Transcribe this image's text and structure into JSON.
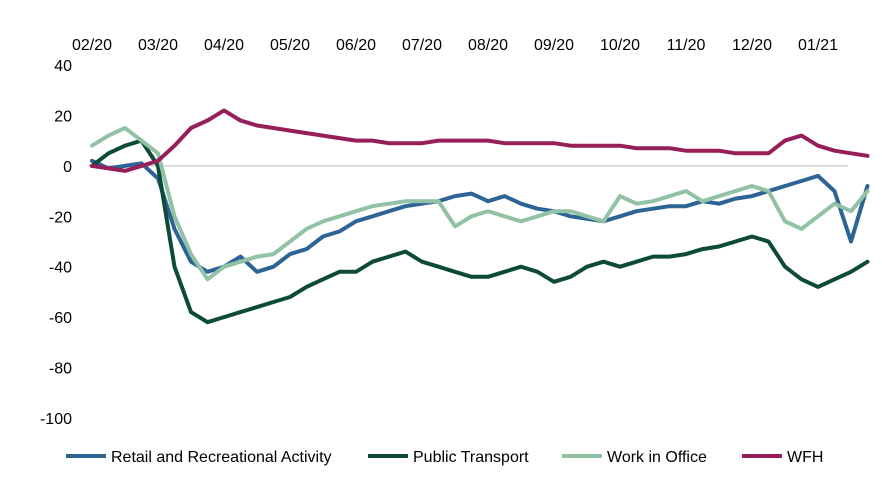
{
  "chart_data": {
    "type": "line",
    "title": "",
    "xlabel": "",
    "ylabel": "",
    "ylim": [
      -100,
      40
    ],
    "yticks": [
      40,
      20,
      0,
      -20,
      -40,
      -60,
      -80,
      -100
    ],
    "x_ticks": [
      "02/20",
      "03/20",
      "04/20",
      "05/20",
      "06/20",
      "07/20",
      "08/20",
      "09/20",
      "10/20",
      "11/20",
      "12/20",
      "01/21"
    ],
    "x_axis_position": "top",
    "legend_position": "bottom",
    "grid": false,
    "x_points_per_month": 4,
    "series": [
      {
        "name": "Retail and Recreational Activity",
        "color": "#2e6396",
        "values": [
          2,
          -1,
          0,
          1,
          -5,
          -25,
          -38,
          -42,
          -40,
          -36,
          -42,
          -40,
          -35,
          -33,
          -28,
          -26,
          -22,
          -20,
          -18,
          -16,
          -15,
          -14,
          -12,
          -11,
          -14,
          -12,
          -15,
          -17,
          -18,
          -20,
          -21,
          -22,
          -20,
          -18,
          -17,
          -16,
          -16,
          -14,
          -15,
          -13,
          -12,
          -10,
          -8,
          -6,
          -4,
          -10,
          -30,
          -8
        ]
      },
      {
        "name": "Public Transport",
        "color": "#0e4a3a",
        "values": [
          0,
          5,
          8,
          10,
          0,
          -40,
          -58,
          -62,
          -60,
          -58,
          -56,
          -54,
          -52,
          -48,
          -45,
          -42,
          -42,
          -38,
          -36,
          -34,
          -38,
          -40,
          -42,
          -44,
          -44,
          -42,
          -40,
          -42,
          -46,
          -44,
          -40,
          -38,
          -40,
          -38,
          -36,
          -36,
          -35,
          -33,
          -32,
          -30,
          -28,
          -30,
          -40,
          -45,
          -48,
          -45,
          -42,
          -38
        ]
      },
      {
        "name": "Work in Office",
        "color": "#92c2a6",
        "values": [
          8,
          12,
          15,
          10,
          5,
          -20,
          -35,
          -45,
          -40,
          -38,
          -36,
          -35,
          -30,
          -25,
          -22,
          -20,
          -18,
          -16,
          -15,
          -14,
          -14,
          -14,
          -24,
          -20,
          -18,
          -20,
          -22,
          -20,
          -18,
          -18,
          -20,
          -22,
          -12,
          -15,
          -14,
          -12,
          -10,
          -14,
          -12,
          -10,
          -8,
          -10,
          -22,
          -25,
          -20,
          -15,
          -18,
          -10
        ]
      },
      {
        "name": "WFH",
        "color": "#961f5a",
        "values": [
          0,
          -1,
          -2,
          0,
          2,
          8,
          15,
          18,
          22,
          18,
          16,
          15,
          14,
          13,
          12,
          11,
          10,
          10,
          9,
          9,
          9,
          10,
          10,
          10,
          10,
          9,
          9,
          9,
          9,
          8,
          8,
          8,
          8,
          7,
          7,
          7,
          6,
          6,
          6,
          5,
          5,
          5,
          10,
          12,
          8,
          6,
          5,
          4
        ]
      }
    ]
  }
}
